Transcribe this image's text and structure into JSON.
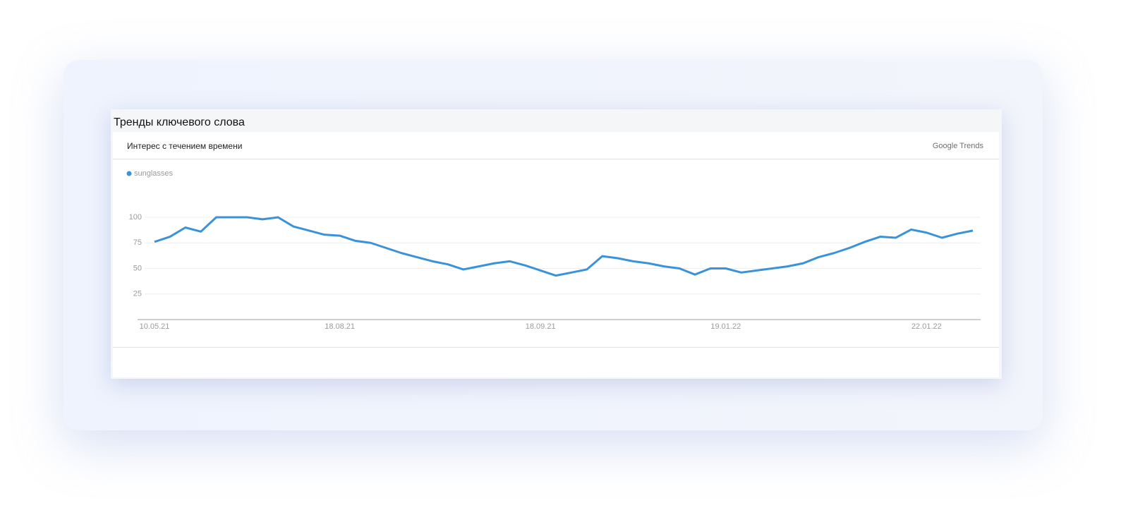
{
  "header": {
    "title": "Тренды ключевого слова"
  },
  "widget": {
    "title": "Интерес с течением времени",
    "brand": "Google Trends"
  },
  "chart_data": {
    "type": "line",
    "categories": [
      "10.05.21",
      null,
      null,
      null,
      null,
      null,
      null,
      null,
      null,
      null,
      null,
      null,
      "18.08.21",
      null,
      null,
      null,
      null,
      null,
      null,
      null,
      null,
      null,
      null,
      null,
      null,
      "18.09.21",
      null,
      null,
      null,
      null,
      null,
      null,
      null,
      null,
      null,
      null,
      null,
      "19.01.22",
      null,
      null,
      null,
      null,
      null,
      null,
      null,
      null,
      null,
      null,
      null,
      null,
      "22.01.22",
      null,
      null,
      null
    ],
    "series": [
      {
        "name": "sunglasses",
        "color": "#3a93d8",
        "values": [
          76,
          81,
          90,
          86,
          100,
          100,
          100,
          98,
          100,
          91,
          87,
          83,
          82,
          77,
          75,
          70,
          65,
          61,
          57,
          54,
          49,
          52,
          55,
          57,
          53,
          48,
          43,
          46,
          49,
          62,
          60,
          57,
          55,
          52,
          50,
          44,
          50,
          50,
          46,
          48,
          50,
          52,
          55,
          61,
          65,
          70,
          76,
          81,
          80,
          88,
          85,
          80,
          84,
          87
        ]
      }
    ],
    "ylim": [
      0,
      100
    ],
    "yticks": [
      25,
      50,
      75,
      100
    ],
    "grid": true
  }
}
